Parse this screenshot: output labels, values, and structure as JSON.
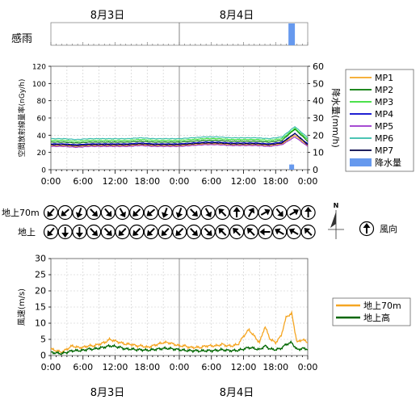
{
  "header": {
    "dates_top": [
      "8月3日",
      "8月4日"
    ],
    "dates_bottom": [
      "8月3日",
      "8月4日"
    ]
  },
  "rain_sensor": {
    "label": "感雨",
    "wet_from_hour": 44.4,
    "wet_to_hour": 45.6,
    "color": "#6699ee"
  },
  "time_ticks": [
    "0:00",
    "6:00",
    "12:00",
    "18:00",
    "0:00",
    "6:00",
    "12:00",
    "18:00",
    "0:00"
  ],
  "chart_data": [
    {
      "type": "line",
      "ylabel": "空間放射線量率(nGy/h)",
      "y2label": "降水量(mm/h)",
      "ylim": [
        0,
        120
      ],
      "y2lim": [
        0,
        60
      ],
      "yticks": [
        "0",
        "20",
        "40",
        "60",
        "80",
        "100",
        "120"
      ],
      "y2ticks": [
        "0",
        "10",
        "20",
        "30",
        "40",
        "50",
        "60"
      ],
      "xlim_hours": [
        0,
        48
      ],
      "series": [
        {
          "name": "MP1",
          "color": "#f5a623",
          "base": 28,
          "peak": 40,
          "values": [
            28,
            28,
            27,
            28,
            28,
            28,
            28,
            29,
            28,
            28,
            28,
            29,
            30,
            30,
            29,
            29,
            29,
            28,
            30,
            40,
            28
          ]
        },
        {
          "name": "MP2",
          "color": "#007700",
          "base": 32,
          "peak": 47,
          "values": [
            32,
            32,
            31,
            32,
            32,
            32,
            32,
            33,
            32,
            32,
            32,
            33,
            34,
            34,
            33,
            33,
            33,
            32,
            34,
            47,
            33
          ]
        },
        {
          "name": "MP3",
          "color": "#33dd33",
          "base": 34,
          "peak": 48,
          "values": [
            34,
            34,
            33,
            34,
            34,
            34,
            34,
            35,
            34,
            34,
            34,
            35,
            36,
            36,
            35,
            35,
            35,
            34,
            36,
            48,
            35
          ]
        },
        {
          "name": "MP4",
          "color": "#0000cc",
          "base": 30,
          "peak": 42,
          "values": [
            30,
            30,
            29,
            30,
            30,
            30,
            30,
            31,
            30,
            30,
            30,
            31,
            32,
            32,
            31,
            31,
            31,
            30,
            32,
            42,
            30
          ]
        },
        {
          "name": "MP5",
          "color": "#9933cc",
          "base": 27,
          "peak": 38,
          "values": [
            27,
            27,
            26,
            27,
            27,
            27,
            27,
            28,
            27,
            27,
            27,
            28,
            29,
            29,
            28,
            28,
            28,
            27,
            29,
            38,
            27
          ]
        },
        {
          "name": "MP6",
          "color": "#33bbaa",
          "base": 36,
          "peak": 50,
          "values": [
            36,
            36,
            35,
            36,
            36,
            36,
            36,
            37,
            36,
            36,
            36,
            37,
            38,
            38,
            37,
            37,
            37,
            36,
            38,
            50,
            37
          ]
        },
        {
          "name": "MP7",
          "color": "#000044",
          "base": 29,
          "peak": 42,
          "values": [
            29,
            29,
            28,
            29,
            29,
            29,
            29,
            30,
            29,
            29,
            29,
            30,
            31,
            31,
            30,
            30,
            30,
            29,
            31,
            42,
            29
          ]
        }
      ],
      "rain": {
        "name": "降水量",
        "color": "#6699ee",
        "hour": 45.0,
        "value": 3
      }
    },
    {
      "type": "line",
      "ylabel": "風速(m/s)",
      "ylim": [
        0,
        30
      ],
      "yticks": [
        "0",
        "5",
        "10",
        "15",
        "20",
        "25",
        "30"
      ],
      "xlim_hours": [
        0,
        48
      ],
      "series": [
        {
          "name": "地上70m",
          "color": "#f5a623",
          "values": [
            2,
            1.5,
            1,
            2,
            3,
            2.5,
            2.5,
            3,
            3,
            3.5,
            4,
            5,
            4.5,
            4,
            3.5,
            3.5,
            3,
            3,
            2.5,
            3,
            3.5,
            4,
            4,
            3.5,
            3,
            3,
            2.5,
            2.5,
            2.5,
            3,
            3,
            3,
            3.5,
            3,
            3,
            3.5,
            6,
            8,
            6,
            4,
            9,
            5,
            4,
            6,
            12,
            13,
            4,
            5,
            4
          ]
        },
        {
          "name": "地上高",
          "color": "#006600",
          "values": [
            1,
            0.8,
            0.6,
            1,
            1.5,
            1.5,
            1.6,
            2,
            2,
            2.3,
            2.6,
            3,
            2.8,
            2.5,
            2,
            2,
            1.8,
            1.8,
            1.6,
            1.8,
            2,
            2.2,
            2.2,
            2,
            1.8,
            1.6,
            1.5,
            1.5,
            1.4,
            1.5,
            1.5,
            1.6,
            1.8,
            1.6,
            1.5,
            1.6,
            2,
            2.5,
            2.2,
            1.8,
            3,
            2,
            1.8,
            2.2,
            3.5,
            4,
            1.8,
            2.2,
            2
          ]
        }
      ]
    }
  ],
  "wind_direction": {
    "rows": [
      {
        "label": "地上70m",
        "angles": [
          220,
          230,
          200,
          135,
          140,
          150,
          225,
          230,
          200,
          200,
          135,
          150,
          315,
          0,
          30,
          60,
          140,
          60,
          0
        ]
      },
      {
        "label": "地上",
        "angles": [
          220,
          180,
          180,
          135,
          135,
          225,
          225,
          225,
          225,
          225,
          135,
          135,
          315,
          315,
          315,
          270,
          300,
          300,
          315
        ]
      }
    ],
    "compass_label": "N",
    "legend_label": "風向",
    "legend_angle": 0
  }
}
